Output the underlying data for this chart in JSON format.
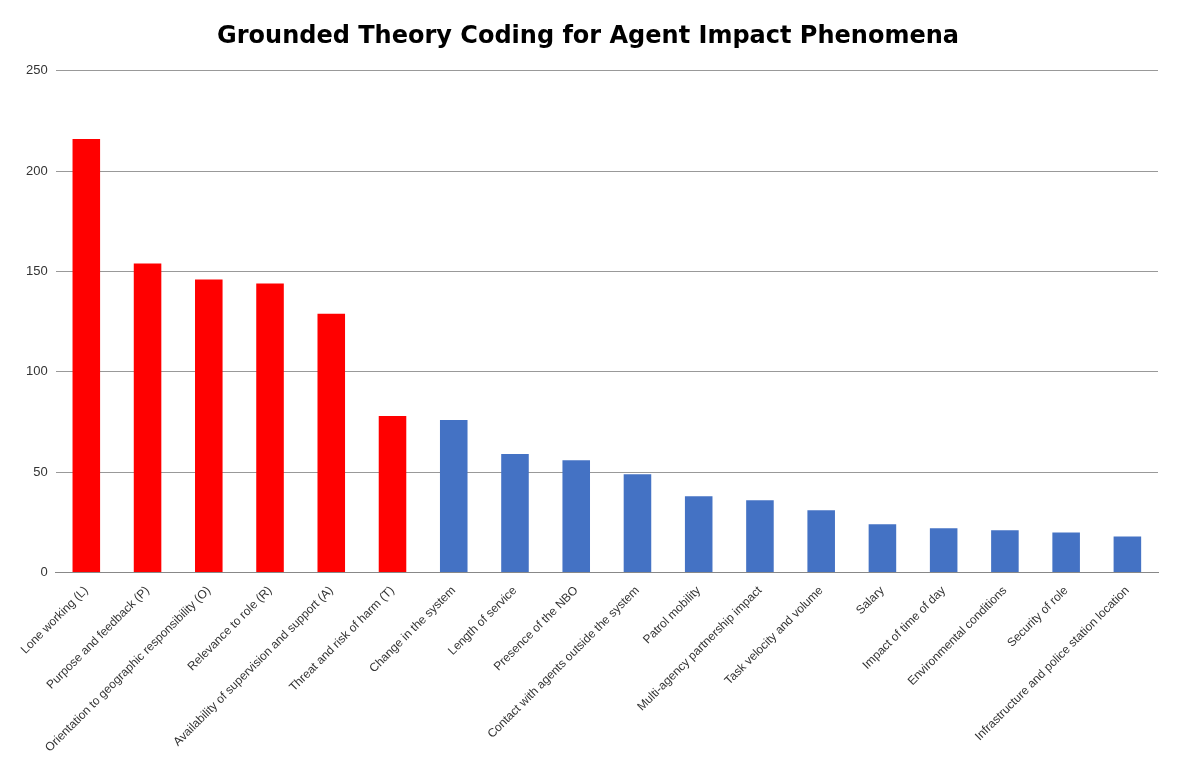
{
  "chart_data": {
    "type": "bar",
    "title": "Grounded Theory Coding for Agent Impact Phenomena",
    "categories": [
      "Lone working (L)",
      "Purpose and feedback (P)",
      "Orientation to geographic responsibility (O)",
      "Relevance to role (R)",
      "Availability of supervision and support (A)",
      "Threat and risk of harm (T)",
      "Change in the system",
      "Length of service",
      "Presence of the NBO",
      "Contact with agents outside the system",
      "Patrol mobility",
      "Multi-agency partnership impact",
      "Task velocity and volume",
      "Salary",
      "Impact of time of day",
      "Environmental conditions",
      "Security of role",
      "Infrastructure and police station location"
    ],
    "values": [
      216,
      154,
      146,
      144,
      129,
      78,
      76,
      59,
      56,
      49,
      38,
      36,
      31,
      24,
      22,
      21,
      20,
      18
    ],
    "colors": [
      "#ff0000",
      "#ff0000",
      "#ff0000",
      "#ff0000",
      "#ff0000",
      "#ff0000",
      "#4472c4",
      "#4472c4",
      "#4472c4",
      "#4472c4",
      "#4472c4",
      "#4472c4",
      "#4472c4",
      "#4472c4",
      "#4472c4",
      "#4472c4",
      "#4472c4",
      "#4472c4"
    ],
    "ylim": [
      0,
      250
    ],
    "yticks": [
      0,
      50,
      100,
      150,
      200,
      250
    ],
    "grid": "y",
    "legend": false
  }
}
